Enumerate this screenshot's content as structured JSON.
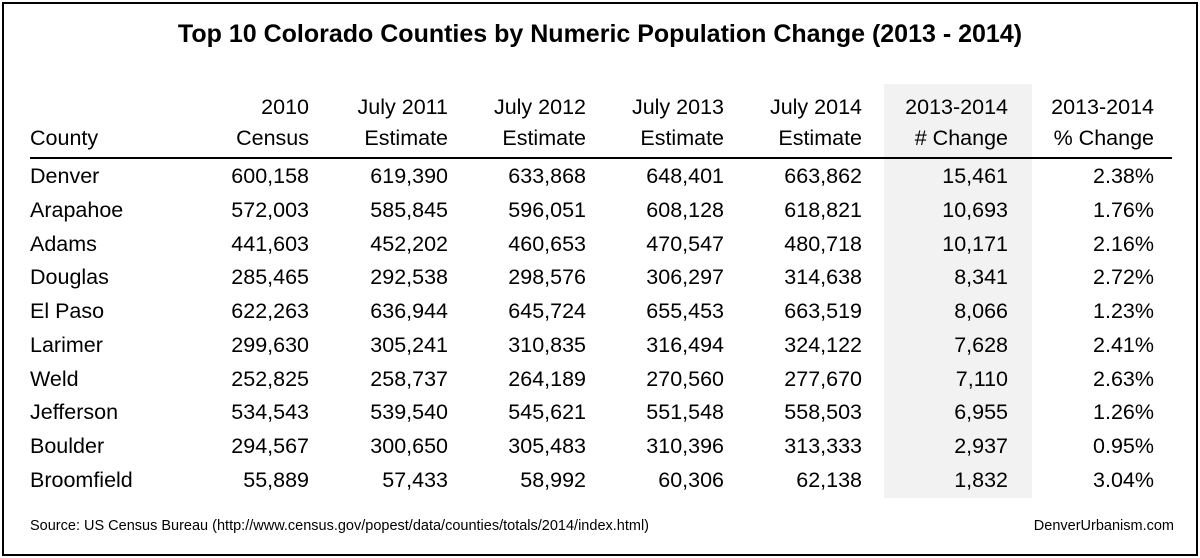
{
  "title": "Top 10 Colorado Counties by Numeric Population Change (2013 - 2014)",
  "headers": [
    {
      "line1": "",
      "line2": "County"
    },
    {
      "line1": "2010",
      "line2": "Census"
    },
    {
      "line1": "July 2011",
      "line2": "Estimate"
    },
    {
      "line1": "July 2012",
      "line2": "Estimate"
    },
    {
      "line1": "July 2013",
      "line2": "Estimate"
    },
    {
      "line1": "July 2014",
      "line2": "Estimate"
    },
    {
      "line1": "2013-2014",
      "line2": "# Change"
    },
    {
      "line1": "2013-2014",
      "line2": "% Change"
    }
  ],
  "rows": [
    {
      "county": "Denver",
      "c2010": "600,158",
      "e2011": "619,390",
      "e2012": "633,868",
      "e2013": "648,401",
      "e2014": "663,862",
      "change": "15,461",
      "pct": "2.38%"
    },
    {
      "county": "Arapahoe",
      "c2010": "572,003",
      "e2011": "585,845",
      "e2012": "596,051",
      "e2013": "608,128",
      "e2014": "618,821",
      "change": "10,693",
      "pct": "1.76%"
    },
    {
      "county": "Adams",
      "c2010": "441,603",
      "e2011": "452,202",
      "e2012": "460,653",
      "e2013": "470,547",
      "e2014": "480,718",
      "change": "10,171",
      "pct": "2.16%"
    },
    {
      "county": "Douglas",
      "c2010": "285,465",
      "e2011": "292,538",
      "e2012": "298,576",
      "e2013": "306,297",
      "e2014": "314,638",
      "change": "8,341",
      "pct": "2.72%"
    },
    {
      "county": "El Paso",
      "c2010": "622,263",
      "e2011": "636,944",
      "e2012": "645,724",
      "e2013": "655,453",
      "e2014": "663,519",
      "change": "8,066",
      "pct": "1.23%"
    },
    {
      "county": "Larimer",
      "c2010": "299,630",
      "e2011": "305,241",
      "e2012": "310,835",
      "e2013": "316,494",
      "e2014": "324,122",
      "change": "7,628",
      "pct": "2.41%"
    },
    {
      "county": "Weld",
      "c2010": "252,825",
      "e2011": "258,737",
      "e2012": "264,189",
      "e2013": "270,560",
      "e2014": "277,670",
      "change": "7,110",
      "pct": "2.63%"
    },
    {
      "county": "Jefferson",
      "c2010": "534,543",
      "e2011": "539,540",
      "e2012": "545,621",
      "e2013": "551,548",
      "e2014": "558,503",
      "change": "6,955",
      "pct": "1.26%"
    },
    {
      "county": "Boulder",
      "c2010": "294,567",
      "e2011": "300,650",
      "e2012": "305,483",
      "e2013": "310,396",
      "e2014": "313,333",
      "change": "2,937",
      "pct": "0.95%"
    },
    {
      "county": "Broomfield",
      "c2010": "55,889",
      "e2011": "57,433",
      "e2012": "58,992",
      "e2013": "60,306",
      "e2014": "62,138",
      "change": "1,832",
      "pct": "3.04%"
    }
  ],
  "footer": {
    "source": "Source: US Census Bureau (http://www.census.gov/popest/data/counties/totals/2014/index.html)",
    "credit": "DenverUrbanism.com"
  },
  "colors": {
    "shade": "#f2f2f2",
    "border": "#000000",
    "text": "#000000"
  }
}
